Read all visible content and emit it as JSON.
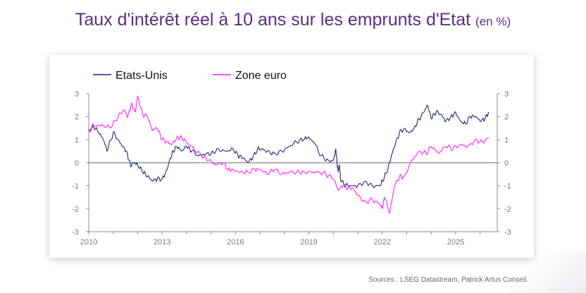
{
  "header": {
    "title": "Taux d'intérêt réel à 10 ans sur les emprunts d'Etat",
    "title_unit": "(en %)"
  },
  "footer": {
    "source": "Sources : LSEG Datastream, Patrick Artus Conseil."
  },
  "colors": {
    "title": "#5b2d82",
    "us": "#1f2a78",
    "euro": "#ff22ff",
    "axis": "#8c8c8c",
    "zero_line": "#333333"
  },
  "chart_data": {
    "type": "line",
    "title": "Taux d'intérêt réel à 10 ans sur les emprunts d'Etat",
    "unit": "(en %)",
    "xlim": [
      2010,
      2026.7
    ],
    "ylim": [
      -3,
      3
    ],
    "x_ticks": [
      "2010",
      "2013",
      "2016",
      "2019",
      "2022",
      "2025"
    ],
    "y_ticks_left": [
      "3",
      "2",
      "1",
      "0",
      "-1",
      "-2",
      "-3"
    ],
    "y_ticks_right": [
      "3",
      "2",
      "1",
      "0",
      "-1",
      "-2",
      "-3"
    ],
    "legend_placement": "top-left",
    "grid": false,
    "series": [
      {
        "name": "Etats-Unis",
        "color": "#1f2a78",
        "x": [
          2010.0,
          2010.2,
          2010.4,
          2010.6,
          2010.75,
          2011.0,
          2011.2,
          2011.4,
          2011.55,
          2011.7,
          2011.85,
          2012.0,
          2012.2,
          2012.4,
          2012.6,
          2012.8,
          2013.0,
          2013.2,
          2013.3,
          2013.45,
          2013.6,
          2013.8,
          2014.0,
          2014.2,
          2014.5,
          2014.8,
          2015.0,
          2015.3,
          2015.6,
          2015.9,
          2016.1,
          2016.3,
          2016.5,
          2016.7,
          2016.9,
          2017.1,
          2017.3,
          2017.6,
          2017.9,
          2018.2,
          2018.5,
          2018.8,
          2018.95,
          2019.2,
          2019.5,
          2019.8,
          2020.0,
          2020.1,
          2020.15,
          2020.2,
          2020.25,
          2020.3,
          2020.5,
          2020.75,
          2021.0,
          2021.3,
          2021.6,
          2021.9,
          2022.0,
          2022.2,
          2022.35,
          2022.5,
          2022.7,
          2022.9,
          2023.1,
          2023.3,
          2023.5,
          2023.7,
          2023.85,
          2024.0,
          2024.2,
          2024.4,
          2024.6,
          2024.8,
          2025.0,
          2025.2,
          2025.4,
          2025.6,
          2025.8,
          2026.0,
          2026.2,
          2026.35
        ],
        "values": [
          1.4,
          1.6,
          1.3,
          1.0,
          0.5,
          1.3,
          1.0,
          0.7,
          0.5,
          -0.1,
          0.0,
          -0.1,
          -0.4,
          -0.6,
          -0.8,
          -0.7,
          -0.7,
          -0.3,
          0.1,
          0.5,
          0.7,
          0.5,
          0.7,
          0.5,
          0.3,
          0.4,
          0.4,
          0.6,
          0.5,
          0.6,
          0.3,
          0.2,
          0.0,
          0.2,
          0.6,
          0.6,
          0.5,
          0.4,
          0.5,
          0.7,
          0.9,
          1.0,
          1.1,
          0.9,
          0.3,
          0.1,
          0.1,
          0.6,
          0.0,
          -0.4,
          -0.1,
          -0.8,
          -1.0,
          -1.0,
          -1.0,
          -0.8,
          -1.0,
          -1.0,
          -0.8,
          -0.4,
          0.2,
          0.7,
          1.3,
          1.5,
          1.3,
          1.5,
          1.9,
          2.2,
          2.5,
          1.9,
          2.2,
          2.1,
          1.8,
          2.0,
          2.2,
          1.8,
          1.7,
          2.0,
          2.0,
          1.8,
          1.9,
          2.2
        ]
      },
      {
        "name": "Zone euro",
        "color": "#ff22ff",
        "x": [
          2010.0,
          2010.3,
          2010.6,
          2010.9,
          2011.2,
          2011.45,
          2011.6,
          2011.75,
          2011.9,
          2012.0,
          2012.2,
          2012.4,
          2012.6,
          2012.8,
          2013.0,
          2013.2,
          2013.4,
          2013.6,
          2013.8,
          2014.0,
          2014.3,
          2014.6,
          2014.9,
          2015.2,
          2015.5,
          2015.7,
          2015.9,
          2016.2,
          2016.5,
          2016.8,
          2017.0,
          2017.3,
          2017.6,
          2017.9,
          2018.2,
          2018.5,
          2018.8,
          2019.1,
          2019.4,
          2019.7,
          2020.0,
          2020.2,
          2020.4,
          2020.6,
          2020.8,
          2021.0,
          2021.3,
          2021.6,
          2021.9,
          2022.0,
          2022.1,
          2022.3,
          2022.5,
          2022.7,
          2022.9,
          2023.2,
          2023.5,
          2023.8,
          2024.0,
          2024.3,
          2024.6,
          2024.9,
          2025.2,
          2025.5,
          2025.8,
          2026.1,
          2026.35
        ],
        "values": [
          1.4,
          1.6,
          1.6,
          1.5,
          2.0,
          2.3,
          2.0,
          2.6,
          2.2,
          2.9,
          2.1,
          2.0,
          1.4,
          1.5,
          1.0,
          0.9,
          0.8,
          1.1,
          1.1,
          0.9,
          0.6,
          0.3,
          0.1,
          -0.1,
          0.0,
          -0.3,
          -0.3,
          -0.4,
          -0.4,
          -0.3,
          -0.3,
          -0.5,
          -0.3,
          -0.5,
          -0.4,
          -0.4,
          -0.4,
          -0.4,
          -0.4,
          -0.5,
          -0.7,
          -1.2,
          -1.0,
          -1.1,
          -1.1,
          -1.4,
          -1.7,
          -1.6,
          -1.8,
          -2.0,
          -1.5,
          -2.2,
          -1.0,
          -0.6,
          -0.6,
          0.1,
          0.5,
          0.4,
          0.7,
          0.4,
          0.7,
          0.6,
          0.8,
          0.7,
          1.0,
          0.9,
          1.1
        ]
      }
    ]
  }
}
